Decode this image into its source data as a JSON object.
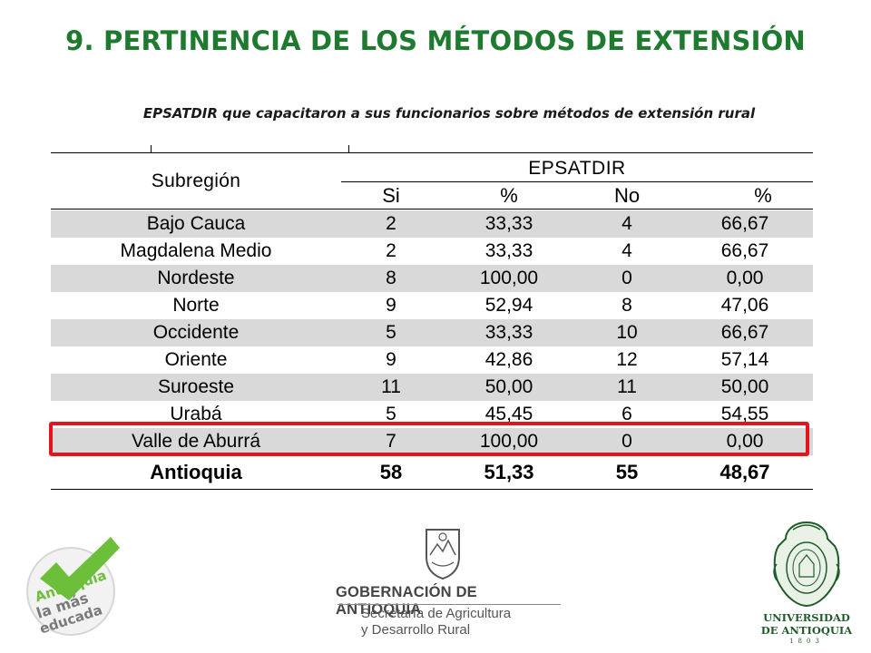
{
  "title": "9. PERTINENCIA DE LOS MÉTODOS DE EXTENSIÓN",
  "subtitle": "EPSATDIR que capacitaron a sus funcionarios sobre métodos de extensión rural",
  "table": {
    "col_subregion": "Subregión",
    "group_header": "EPSATDIR",
    "sub_headers": [
      "Si",
      "%",
      "No",
      "%"
    ],
    "rows": [
      {
        "subregion": "Bajo Cauca",
        "si": "2",
        "si_pct": "33,33",
        "no": "4",
        "no_pct": "66,67"
      },
      {
        "subregion": "Magdalena Medio",
        "si": "2",
        "si_pct": "33,33",
        "no": "4",
        "no_pct": "66,67"
      },
      {
        "subregion": "Nordeste",
        "si": "8",
        "si_pct": "100,00",
        "no": "0",
        "no_pct": "0,00"
      },
      {
        "subregion": "Norte",
        "si": "9",
        "si_pct": "52,94",
        "no": "8",
        "no_pct": "47,06"
      },
      {
        "subregion": "Occidente",
        "si": "5",
        "si_pct": "33,33",
        "no": "10",
        "no_pct": "66,67"
      },
      {
        "subregion": "Oriente",
        "si": "9",
        "si_pct": "42,86",
        "no": "12",
        "no_pct": "57,14"
      },
      {
        "subregion": "Suroeste",
        "si": "11",
        "si_pct": "50,00",
        "no": "11",
        "no_pct": "50,00"
      },
      {
        "subregion": "Urabá",
        "si": "5",
        "si_pct": "45,45",
        "no": "6",
        "no_pct": "54,55"
      },
      {
        "subregion": "Valle de Aburrá",
        "si": "7",
        "si_pct": "100,00",
        "no": "0",
        "no_pct": "0,00"
      }
    ],
    "total": {
      "subregion": "Antioquia",
      "si": "58",
      "si_pct": "51,33",
      "no": "55",
      "no_pct": "48,67"
    },
    "highlight_color": "#e3141c",
    "shade_color": "#d9d9d9"
  },
  "logos": {
    "left_logo": {
      "line1": "Antioquia",
      "line2": "la más",
      "line3": "educada"
    },
    "gov": {
      "line1": "GOBERNACIÓN DE ANTIOQUIA",
      "line2": "Secretaría de Agricultura",
      "line3": "y Desarrollo Rural"
    },
    "udea": {
      "line1": "UNIVERSIDAD",
      "line2": "DE ANTIOQUIA",
      "year": "1803"
    }
  },
  "colors": {
    "title": "#1e7a2e",
    "udea_green": "#1f5c2a",
    "logo_green": "#6cbf3b"
  }
}
